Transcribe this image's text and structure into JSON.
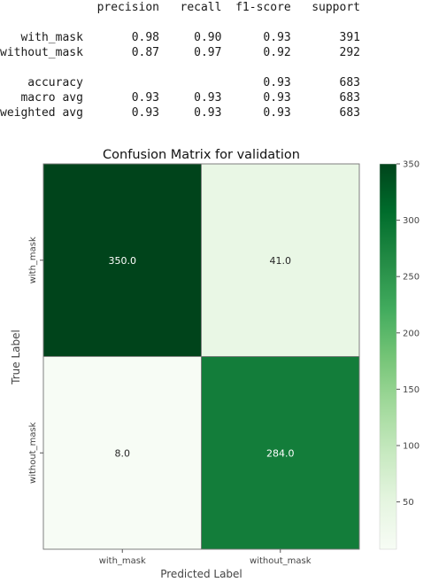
{
  "classification_report": {
    "header": [
      "precision",
      "recall",
      "f1-score",
      "support"
    ],
    "rows": [
      {
        "label": "with_mask",
        "precision": "0.98",
        "recall": "0.90",
        "f1": "0.93",
        "support": "391"
      },
      {
        "label": "without_mask",
        "precision": "0.87",
        "recall": "0.97",
        "f1": "0.92",
        "support": "292"
      },
      null,
      {
        "label": "accuracy",
        "precision": "",
        "recall": "",
        "f1": "0.93",
        "support": "683"
      },
      {
        "label": "macro avg",
        "precision": "0.93",
        "recall": "0.93",
        "f1": "0.93",
        "support": "683"
      },
      {
        "label": "weighted avg",
        "precision": "0.93",
        "recall": "0.93",
        "f1": "0.93",
        "support": "683"
      }
    ]
  },
  "chart_data": {
    "type": "heatmap",
    "title": "Confusion Matrix for validation",
    "xlabel": "Predicted Label",
    "ylabel": "True Label",
    "x_categories": [
      "with_mask",
      "without_mask"
    ],
    "y_categories": [
      "with_mask",
      "without_mask"
    ],
    "values": [
      [
        350.0,
        41.0
      ],
      [
        8.0,
        284.0
      ]
    ],
    "cell_labels": [
      [
        "350.0",
        "41.0"
      ],
      [
        "8.0",
        "284.0"
      ]
    ],
    "colormap": "Greens",
    "colorbar": {
      "min": 8,
      "max": 350,
      "ticks": [
        50,
        100,
        150,
        200,
        250,
        300,
        350
      ]
    }
  }
}
